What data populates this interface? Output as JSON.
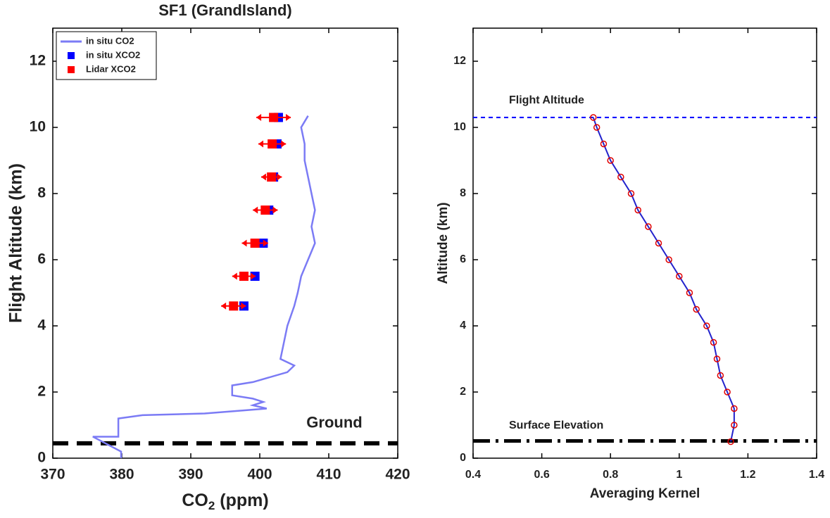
{
  "chart_data": [
    {
      "type": "line",
      "title": "SF1 (GrandIsland)",
      "ylabel": "Flight Altitude (km)",
      "xlabel_parts": [
        "CO",
        "2",
        " (ppm)"
      ],
      "xlim": [
        370,
        420
      ],
      "xticks": [
        370,
        380,
        390,
        400,
        410,
        420
      ],
      "ylim": [
        0,
        13
      ],
      "yticks": [
        0,
        2,
        4,
        6,
        8,
        10,
        12
      ],
      "legend": "upper left",
      "series": [
        {
          "name": "in situ CO2",
          "color": "#7b7bf5",
          "style": "line",
          "x": [
            379.9,
            379.9,
            375.8,
            379.5,
            379.5,
            383,
            392,
            398,
            401,
            399,
            400.5,
            399,
            396,
            396,
            399,
            404,
            405,
            403,
            403.5,
            404,
            405,
            405.5,
            406,
            407,
            408,
            407.5,
            408,
            407.5,
            407,
            406.5,
            406.5,
            406,
            407
          ],
          "values": [
            0.0,
            0.2,
            0.65,
            0.65,
            1.2,
            1.3,
            1.35,
            1.45,
            1.5,
            1.6,
            1.7,
            1.8,
            1.9,
            2.2,
            2.3,
            2.6,
            2.8,
            3.0,
            3.5,
            4.0,
            4.6,
            5.0,
            5.5,
            6.0,
            6.5,
            7.0,
            7.5,
            8.0,
            8.5,
            9.0,
            9.5,
            10.0,
            10.35
          ]
        },
        {
          "name": "in situ XCO2",
          "color": "#0000ff",
          "style": "square",
          "x": [
            402.7,
            402.5,
            402,
            401.3,
            400.5,
            399.3,
            397.7
          ],
          "values": [
            10.3,
            9.5,
            8.5,
            7.5,
            6.5,
            5.5,
            4.6
          ]
        },
        {
          "name": "Lidar XCO2",
          "color": "#ff0000",
          "style": "square",
          "x": [
            402,
            401.8,
            401.7,
            400.8,
            399.3,
            397.7,
            396.2
          ],
          "values": [
            10.3,
            9.5,
            8.5,
            7.5,
            6.5,
            5.5,
            4.6
          ],
          "error": [
            2.5,
            2,
            1.5,
            1.8,
            1.9,
            1.7,
            1.8
          ]
        }
      ],
      "hlines": [
        {
          "value": 0.45,
          "label": "Ground",
          "color": "#000000",
          "style": "dash"
        }
      ]
    },
    {
      "type": "line",
      "xlabel": "Averaging Kernel",
      "ylabel": "Altitude (km)",
      "xlim": [
        0.4,
        1.4
      ],
      "xticks": [
        0.4,
        0.6,
        0.8,
        1,
        1.2,
        1.4
      ],
      "ylim": [
        0,
        13
      ],
      "yticks": [
        0,
        2,
        4,
        6,
        8,
        10,
        12
      ],
      "series": [
        {
          "color": "#2222cc",
          "marker_color": "#e00000",
          "style": "circle-line",
          "x": [
            1.15,
            1.16,
            1.16,
            1.14,
            1.12,
            1.11,
            1.1,
            1.08,
            1.05,
            1.03,
            1.0,
            0.97,
            0.94,
            0.91,
            0.88,
            0.86,
            0.83,
            0.8,
            0.78,
            0.76,
            0.75
          ],
          "values": [
            0.5,
            1.0,
            1.5,
            2.0,
            2.5,
            3.0,
            3.5,
            4.0,
            4.5,
            5.0,
            5.5,
            6.0,
            6.5,
            7.0,
            7.5,
            8.0,
            8.5,
            9.0,
            9.5,
            10.0,
            10.3
          ]
        }
      ],
      "hlines": [
        {
          "value": 10.3,
          "label": "Flight Altitude",
          "color": "#0000ff",
          "style": "thin-dash"
        },
        {
          "value": 0.52,
          "label": "Surface Elevation",
          "color": "#000000",
          "style": "dash-dot"
        }
      ]
    }
  ]
}
